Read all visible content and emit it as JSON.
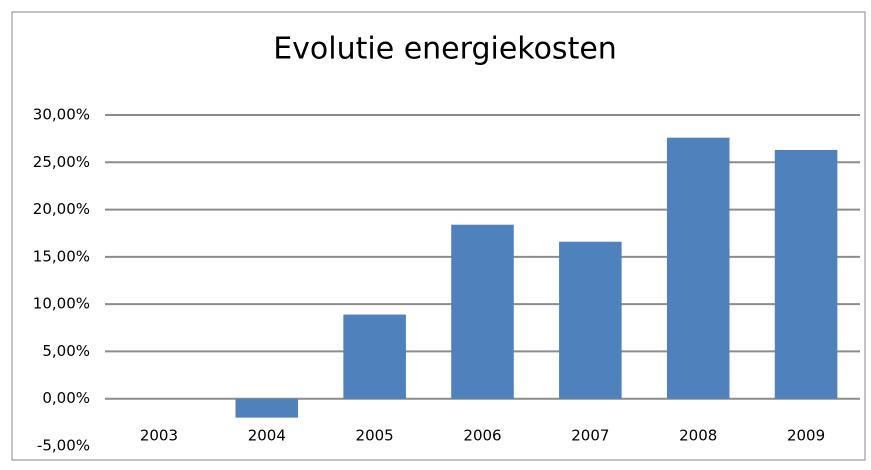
{
  "chart_data": {
    "type": "bar",
    "title": "Evolutie energiekosten",
    "categories": [
      "2003",
      "2004",
      "2005",
      "2006",
      "2007",
      "2008",
      "2009"
    ],
    "values": [
      0,
      -2.0,
      8.9,
      18.4,
      16.6,
      27.6,
      26.3
    ],
    "color": "#4f81bd",
    "ylim": [
      -5,
      30
    ],
    "yticks": [
      {
        "value": -5,
        "label": "-5,00%"
      },
      {
        "value": 0,
        "label": "0,00%"
      },
      {
        "value": 5,
        "label": "5,00%"
      },
      {
        "value": 10,
        "label": "10,00%"
      },
      {
        "value": 15,
        "label": "15,00%"
      },
      {
        "value": 20,
        "label": "20,00%"
      },
      {
        "value": 25,
        "label": "25,00%"
      },
      {
        "value": 30,
        "label": "30,00%"
      }
    ],
    "grid": true
  }
}
